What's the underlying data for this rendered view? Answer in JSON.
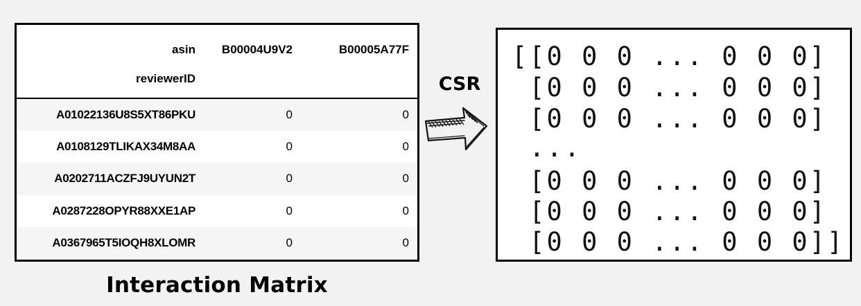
{
  "dataframe": {
    "column_axis_name": "asin",
    "index_axis_name": "reviewerID",
    "columns": [
      "B00004U9V2",
      "B00005A77F"
    ],
    "rows": [
      {
        "id": "A01022136U8S5XT86PKU",
        "values": [
          "0",
          "0"
        ]
      },
      {
        "id": "A0108129TLIKAX34M8AA",
        "values": [
          "0",
          "0"
        ]
      },
      {
        "id": "A0202711ACZFJ9UYUN2T",
        "values": [
          "0",
          "0"
        ]
      },
      {
        "id": "A0287228OPYR88XXE1AP",
        "values": [
          "0",
          "0"
        ]
      },
      {
        "id": "A0367965T5IOQH8XLOMR",
        "values": [
          "0",
          "0"
        ]
      }
    ]
  },
  "caption": "Interaction Matrix",
  "arrow_label": "CSR",
  "matrix_lines": [
    "[[0 0 0 ... 0 0 0]",
    " [0 0 0 ... 0 0 0]",
    " [0 0 0 ... 0 0 0]",
    " ...",
    " [0 0 0 ... 0 0 0]",
    " [0 0 0 ... 0 0 0]",
    " [0 0 0 ... 0 0 0]]"
  ],
  "icons": {
    "arrow": "hand-drawn-right-arrow-icon"
  }
}
